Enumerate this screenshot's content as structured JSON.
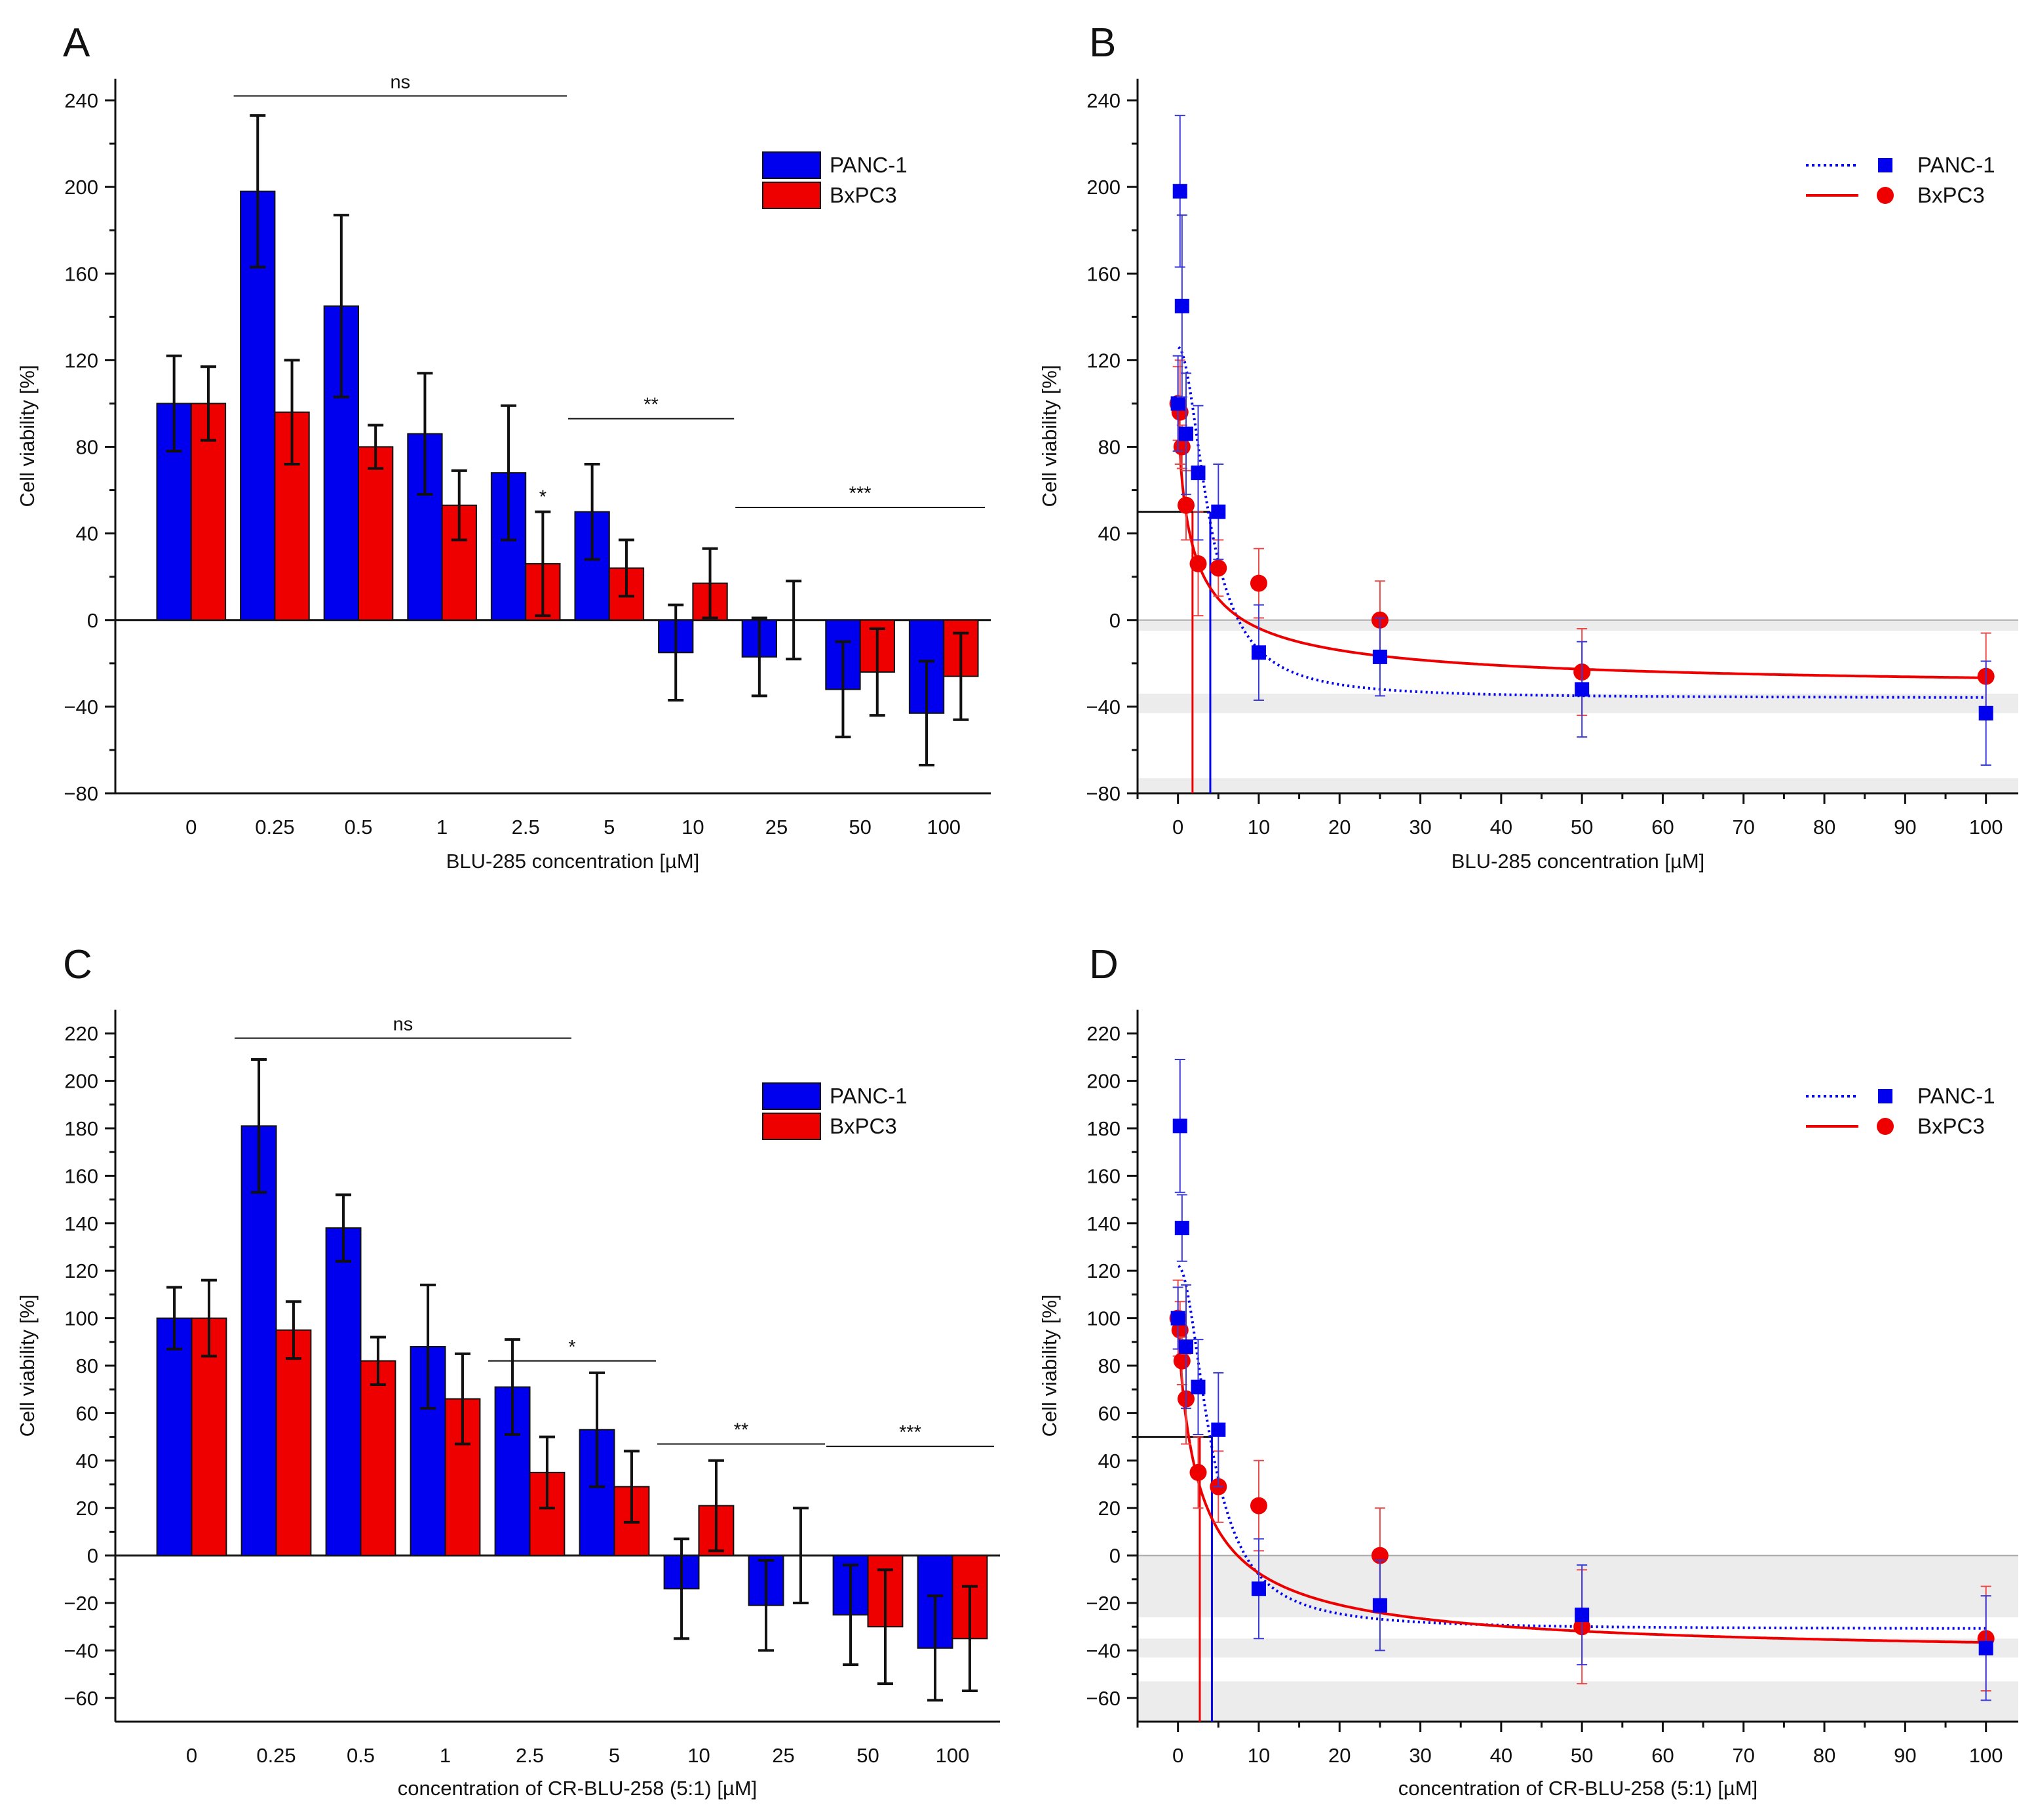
{
  "colors": {
    "panc1": "#0000ee",
    "bxpc3": "#ee0000",
    "band": "#ececec"
  },
  "series_names": [
    "PANC-1",
    "BxPC3"
  ],
  "chart_data": [
    {
      "id": "A",
      "panel": "A",
      "type": "bar",
      "title": "",
      "xlabel": "BLU-285 concentration [µM]",
      "ylabel": "Cell viability [%]",
      "ylim": [
        -80,
        250
      ],
      "yticks": [
        -80,
        -40,
        0,
        40,
        80,
        120,
        160,
        200,
        240
      ],
      "categories": [
        "0",
        "0.25",
        "0.5",
        "1",
        "2.5",
        "5",
        "10",
        "25",
        "50",
        "100"
      ],
      "series": [
        {
          "name": "PANC-1",
          "values": [
            100,
            198,
            145,
            86,
            68,
            50,
            -15,
            -17,
            -32,
            -43
          ],
          "errors": [
            22,
            35,
            42,
            28,
            31,
            22,
            22,
            18,
            22,
            24
          ]
        },
        {
          "name": "BxPC3",
          "values": [
            100,
            96,
            80,
            53,
            26,
            24,
            17,
            0,
            -24,
            -26
          ],
          "errors": [
            17,
            24,
            10,
            16,
            24,
            13,
            16,
            18,
            20,
            20
          ]
        }
      ],
      "legend": "top-right",
      "annotations": [
        {
          "label": "ns",
          "from": 1,
          "to": 4,
          "y": 242
        },
        {
          "label": "**",
          "from": 5,
          "to": 6,
          "y": 93
        },
        {
          "label": "***",
          "from": 7,
          "to": 9,
          "y": 52
        },
        {
          "label": "*",
          "at": 4,
          "series": 1,
          "y": 54
        }
      ]
    },
    {
      "id": "B",
      "panel": "B",
      "type": "scatter",
      "title": "",
      "xlabel": "BLU-285 concentration [µM]",
      "ylabel": "Cell viability [%]",
      "xlim": [
        -5,
        104
      ],
      "ylim": [
        -80,
        250
      ],
      "xticks": [
        0,
        10,
        20,
        30,
        40,
        50,
        60,
        70,
        80,
        90,
        100
      ],
      "yticks": [
        -80,
        -40,
        0,
        40,
        80,
        120,
        160,
        200,
        240
      ],
      "x": [
        0,
        0.25,
        0.5,
        1,
        2.5,
        5,
        10,
        25,
        50,
        100
      ],
      "series": [
        {
          "name": "PANC-1",
          "values": [
            100,
            198,
            145,
            86,
            68,
            50,
            -15,
            -17,
            -32,
            -43
          ],
          "errors": [
            22,
            35,
            42,
            28,
            31,
            22,
            22,
            18,
            22,
            24
          ],
          "fit": {
            "bottom": -36,
            "top": 126,
            "ic50": 4.0,
            "hill": 2.0
          },
          "line": "dotted"
        },
        {
          "name": "BxPC3",
          "values": [
            100,
            96,
            80,
            53,
            26,
            24,
            17,
            0,
            -24,
            -26
          ],
          "errors": [
            17,
            24,
            10,
            16,
            24,
            13,
            16,
            18,
            20,
            20
          ],
          "fit": {
            "bottom": -33,
            "top": 102,
            "ic50": 1.8,
            "hill": 0.75
          },
          "line": "solid"
        }
      ],
      "ic50_line_y": 50,
      "bands": [
        [
          -5,
          0
        ],
        [
          -43,
          -34
        ],
        [
          -80,
          -73
        ]
      ],
      "legend": "top-right"
    },
    {
      "id": "C",
      "panel": "C",
      "type": "bar",
      "title": "",
      "xlabel": "concentration of CR-BLU-258 (5:1) [µM]",
      "ylabel": "Cell viability [%]",
      "ylim": [
        -70,
        230
      ],
      "yticks": [
        -60,
        -40,
        -20,
        0,
        20,
        40,
        60,
        80,
        100,
        120,
        140,
        160,
        180,
        200,
        220
      ],
      "categories": [
        "0",
        "0.25",
        "0.5",
        "1",
        "2.5",
        "5",
        "10",
        "25",
        "50",
        "100"
      ],
      "series": [
        {
          "name": "PANC-1",
          "values": [
            100,
            181,
            138,
            88,
            71,
            53,
            -14,
            -21,
            -25,
            -39
          ],
          "errors": [
            13,
            28,
            14,
            26,
            20,
            24,
            21,
            19,
            21,
            22
          ]
        },
        {
          "name": "BxPC3",
          "values": [
            100,
            95,
            82,
            66,
            35,
            29,
            21,
            0,
            -30,
            -35
          ],
          "errors": [
            16,
            12,
            10,
            19,
            15,
            15,
            19,
            20,
            24,
            22
          ]
        }
      ],
      "legend": "top-right",
      "annotations": [
        {
          "label": "ns",
          "from": 1,
          "to": 4,
          "y": 218
        },
        {
          "label": "*",
          "from": 4,
          "to": 5,
          "y": 82
        },
        {
          "label": "**",
          "from": 6,
          "to": 7,
          "y": 47
        },
        {
          "label": "***",
          "from": 8,
          "to": 9,
          "y": 46
        }
      ]
    },
    {
      "id": "D",
      "panel": "D",
      "type": "scatter",
      "title": "",
      "xlabel": "concentration of CR-BLU-258 (5:1) [µM]",
      "ylabel": "Cell viability [%]",
      "xlim": [
        -5,
        104
      ],
      "ylim": [
        -70,
        230
      ],
      "xticks": [
        0,
        10,
        20,
        30,
        40,
        50,
        60,
        70,
        80,
        90,
        100
      ],
      "yticks": [
        -60,
        -40,
        -20,
        0,
        20,
        40,
        60,
        80,
        100,
        120,
        140,
        160,
        180,
        200,
        220
      ],
      "x": [
        0,
        0.25,
        0.5,
        1,
        2.5,
        5,
        10,
        25,
        50,
        100
      ],
      "series": [
        {
          "name": "PANC-1",
          "values": [
            100,
            181,
            138,
            88,
            71,
            53,
            -14,
            -21,
            -25,
            -39
          ],
          "errors": [
            13,
            28,
            14,
            26,
            20,
            24,
            21,
            19,
            21,
            22
          ],
          "fit": {
            "bottom": -31,
            "top": 122,
            "ic50": 4.2,
            "hill": 2.0
          },
          "line": "dotted"
        },
        {
          "name": "BxPC3",
          "values": [
            100,
            95,
            82,
            66,
            35,
            29,
            21,
            0,
            -30,
            -35
          ],
          "errors": [
            16,
            12,
            10,
            19,
            15,
            15,
            19,
            20,
            24,
            22
          ],
          "fit": {
            "bottom": -43,
            "top": 101,
            "ic50": 2.7,
            "hill": 0.85
          },
          "line": "solid"
        }
      ],
      "ic50_line_y": 50,
      "bands": [
        [
          -26,
          0
        ],
        [
          -43,
          -35
        ],
        [
          -70,
          -53
        ]
      ],
      "legend": "top-right"
    }
  ]
}
